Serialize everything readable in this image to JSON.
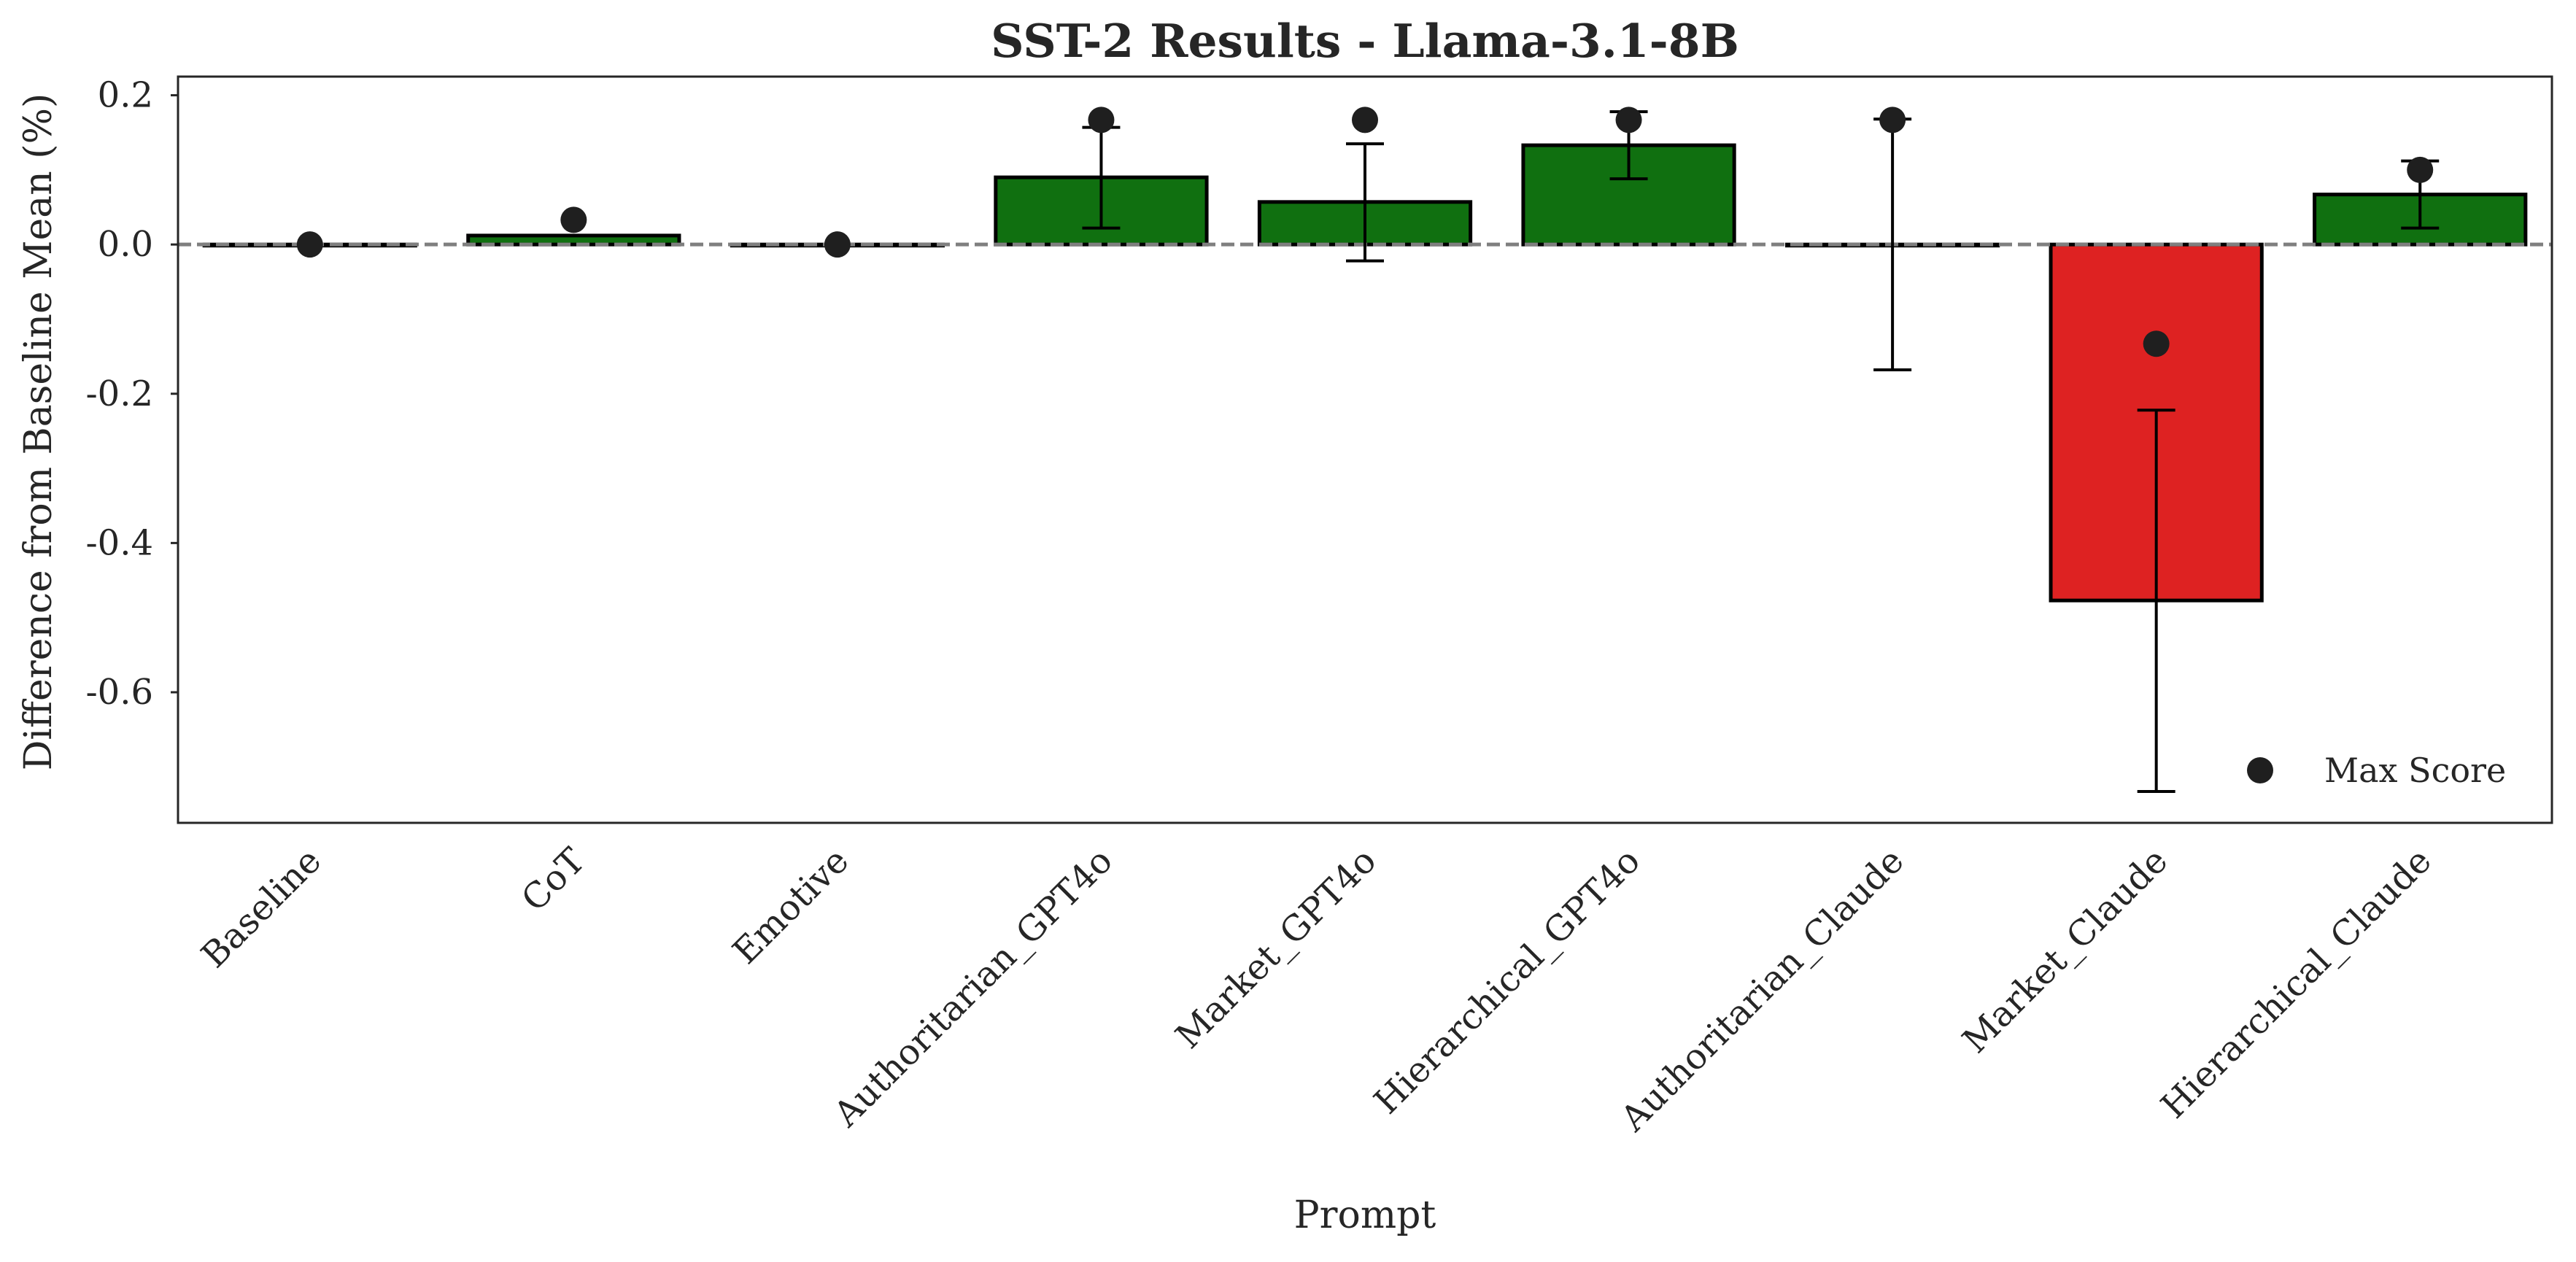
{
  "chart_data": {
    "type": "bar",
    "title": "SST-2 Results - Llama-3.1-8B",
    "xlabel": "Prompt",
    "ylabel": "Difference from Baseline Mean (%)",
    "categories": [
      "Baseline",
      "CoT",
      "Emotive",
      "Authoritarian_GPT4o",
      "Market_GPT4o",
      "Hierarchical_GPT4o",
      "Authoritarian_Claude",
      "Market_Claude",
      "Hierarchical_Claude"
    ],
    "values": [
      0.0,
      0.012,
      0.0,
      0.09,
      0.057,
      0.133,
      0.0,
      -0.477,
      0.067
    ],
    "error_low": [
      0.0,
      0.012,
      0.0,
      0.022,
      -0.022,
      0.088,
      -0.168,
      -0.733,
      0.022
    ],
    "error_high": [
      0.0,
      0.012,
      0.0,
      0.157,
      0.135,
      0.178,
      0.168,
      -0.222,
      0.112
    ],
    "max_score": [
      0.0,
      0.033,
      0.0,
      0.167,
      0.167,
      0.167,
      0.167,
      -0.133,
      0.1
    ],
    "ylim": [
      -0.775,
      0.225
    ],
    "yticks": [
      0.2,
      0.0,
      -0.2,
      -0.4,
      -0.6
    ],
    "ytick_labels": [
      "0.2",
      "0.0",
      "-0.2",
      "-0.4",
      "-0.6"
    ],
    "reference_line": 0.0,
    "legend": {
      "label": "Max Score",
      "position": "lower-right"
    },
    "grid": false,
    "colors": {
      "positive": "#107010",
      "negative": "#de2222",
      "edge": "#000000",
      "marker": "#1f1f1f",
      "reference": "#7f7f7f"
    }
  }
}
